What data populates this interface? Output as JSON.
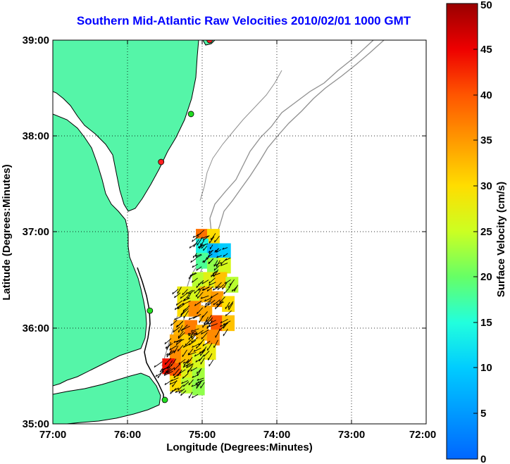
{
  "title": "Southern Mid-Atlantic Raw Velocities 2010/02/01 1000 GMT",
  "xlabel": "Longitude (Degrees:Minutes)",
  "ylabel": "Latitude (Degrees:Minutes)",
  "colorbar_label": "Surface Velocity (cm/s)",
  "x_ticks": [
    "77:00",
    "76:00",
    "75:00",
    "74:00",
    "73:00",
    "72:00"
  ],
  "y_ticks": [
    "39:00",
    "38:00",
    "37:00",
    "36:00",
    "35:00"
  ],
  "colorbar_ticks": [
    "0",
    "5",
    "10",
    "15",
    "20",
    "25",
    "30",
    "35",
    "40",
    "45",
    "50"
  ],
  "colors": {
    "land": "#55f5a8",
    "coast_line": "#000000",
    "bathymetry": "#909090",
    "title": "#0000ff",
    "station_active": "#22dd22",
    "station_inactive": "#ff2020"
  },
  "chart_data": {
    "type": "map",
    "lon_range": [
      -77,
      -72
    ],
    "lat_range": [
      35,
      39
    ],
    "colorbar_range": [
      0,
      50
    ],
    "grid": true,
    "stations": [
      {
        "lon": -74.9,
        "lat": 39.0,
        "status": "inactive"
      },
      {
        "lon": -75.15,
        "lat": 38.23,
        "status": "active"
      },
      {
        "lon": -75.55,
        "lat": 37.73,
        "status": "inactive"
      },
      {
        "lon": -75.7,
        "lat": 36.18,
        "status": "active"
      },
      {
        "lon": -75.5,
        "lat": 35.25,
        "status": "active"
      }
    ],
    "velocity_patches": [
      {
        "lon": -75.0,
        "lat": 36.95,
        "speed": 38
      },
      {
        "lon": -74.85,
        "lat": 36.95,
        "speed": 30
      },
      {
        "lon": -75.0,
        "lat": 36.85,
        "speed": 14
      },
      {
        "lon": -74.85,
        "lat": 36.8,
        "speed": 8
      },
      {
        "lon": -74.7,
        "lat": 36.8,
        "speed": 10
      },
      {
        "lon": -75.0,
        "lat": 36.7,
        "speed": 18
      },
      {
        "lon": -74.85,
        "lat": 36.65,
        "speed": 22
      },
      {
        "lon": -74.7,
        "lat": 36.65,
        "speed": 26
      },
      {
        "lon": -75.05,
        "lat": 36.5,
        "speed": 24
      },
      {
        "lon": -74.9,
        "lat": 36.5,
        "speed": 27
      },
      {
        "lon": -74.75,
        "lat": 36.5,
        "speed": 32
      },
      {
        "lon": -74.6,
        "lat": 36.45,
        "speed": 24
      },
      {
        "lon": -75.25,
        "lat": 36.35,
        "speed": 28
      },
      {
        "lon": -75.1,
        "lat": 36.35,
        "speed": 26
      },
      {
        "lon": -74.95,
        "lat": 36.35,
        "speed": 33
      },
      {
        "lon": -74.8,
        "lat": 36.3,
        "speed": 35
      },
      {
        "lon": -74.65,
        "lat": 36.25,
        "speed": 30
      },
      {
        "lon": -75.25,
        "lat": 36.2,
        "speed": 30
      },
      {
        "lon": -75.1,
        "lat": 36.2,
        "speed": 36
      },
      {
        "lon": -74.95,
        "lat": 36.15,
        "speed": 34
      },
      {
        "lon": -74.8,
        "lat": 36.05,
        "speed": 40
      },
      {
        "lon": -74.65,
        "lat": 36.05,
        "speed": 32
      },
      {
        "lon": -75.3,
        "lat": 36.0,
        "speed": 33
      },
      {
        "lon": -75.15,
        "lat": 36.0,
        "speed": 37
      },
      {
        "lon": -75.0,
        "lat": 35.95,
        "speed": 33
      },
      {
        "lon": -74.85,
        "lat": 35.9,
        "speed": 36
      },
      {
        "lon": -75.35,
        "lat": 35.85,
        "speed": 34
      },
      {
        "lon": -75.2,
        "lat": 35.85,
        "speed": 31
      },
      {
        "lon": -75.05,
        "lat": 35.8,
        "speed": 30
      },
      {
        "lon": -74.9,
        "lat": 35.75,
        "speed": 28
      },
      {
        "lon": -75.35,
        "lat": 35.7,
        "speed": 36
      },
      {
        "lon": -75.2,
        "lat": 35.7,
        "speed": 32
      },
      {
        "lon": -75.05,
        "lat": 35.65,
        "speed": 26
      },
      {
        "lon": -75.45,
        "lat": 35.6,
        "speed": 44
      },
      {
        "lon": -75.35,
        "lat": 35.55,
        "speed": 40
      },
      {
        "lon": -75.2,
        "lat": 35.55,
        "speed": 27
      },
      {
        "lon": -75.05,
        "lat": 35.5,
        "speed": 23
      },
      {
        "lon": -75.35,
        "lat": 35.42,
        "speed": 30
      },
      {
        "lon": -75.2,
        "lat": 35.4,
        "speed": 24
      },
      {
        "lon": -75.05,
        "lat": 35.38,
        "speed": 22
      }
    ]
  }
}
